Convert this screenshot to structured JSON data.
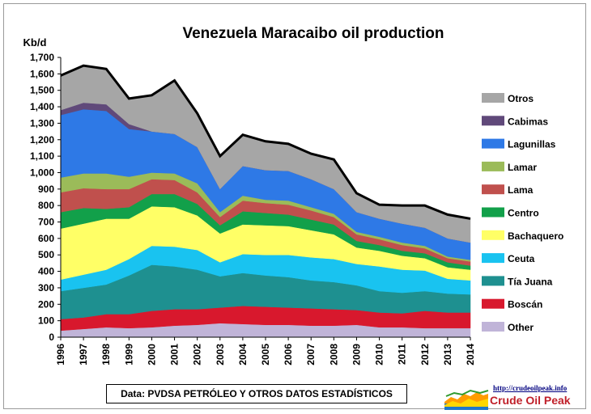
{
  "chart_data": {
    "type": "area",
    "stacked": true,
    "title": "Venezuela Maracaibo oil production",
    "ylabel": "Kb/d",
    "xlabel": "",
    "ylim": [
      0,
      1700
    ],
    "yticks": [
      "0",
      "100",
      "200",
      "300",
      "400",
      "500",
      "600",
      "700",
      "800",
      "900",
      "1,000",
      "1,100",
      "1,200",
      "1,300",
      "1,400",
      "1,500",
      "1,600",
      "1,700"
    ],
    "x": [
      "1996",
      "1997",
      "1998",
      "1999",
      "2000",
      "2001",
      "2002",
      "2003",
      "2004",
      "2005",
      "2006",
      "2007",
      "2008",
      "2009",
      "2010",
      "2011",
      "2012",
      "2013",
      "2014"
    ],
    "legend_position": "right",
    "series": [
      {
        "name": "Other",
        "color": "#c0b4d8",
        "values": [
          40,
          50,
          60,
          55,
          60,
          70,
          75,
          85,
          80,
          75,
          75,
          70,
          70,
          75,
          60,
          60,
          55,
          55,
          55
        ]
      },
      {
        "name": "Boscán",
        "color": "#d8182d",
        "values": [
          70,
          70,
          80,
          85,
          100,
          100,
          95,
          95,
          110,
          110,
          105,
          105,
          100,
          90,
          90,
          85,
          105,
          95,
          95
        ]
      },
      {
        "name": "Tía Juana",
        "color": "#1e9090",
        "values": [
          170,
          180,
          180,
          235,
          280,
          260,
          240,
          190,
          200,
          190,
          185,
          170,
          165,
          150,
          130,
          125,
          120,
          115,
          110
        ]
      },
      {
        "name": "Ceuta",
        "color": "#19c3f0",
        "values": [
          70,
          80,
          90,
          100,
          115,
          120,
          120,
          85,
          115,
          125,
          135,
          140,
          140,
          130,
          150,
          140,
          125,
          90,
          85
        ]
      },
      {
        "name": "Bachaquero",
        "color": "#ffff66",
        "values": [
          310,
          310,
          310,
          245,
          240,
          240,
          210,
          175,
          180,
          180,
          175,
          165,
          150,
          100,
          95,
          85,
          75,
          70,
          65
        ]
      },
      {
        "name": "Centro",
        "color": "#12a04a",
        "values": [
          100,
          95,
          60,
          70,
          75,
          80,
          70,
          50,
          80,
          75,
          70,
          65,
          60,
          40,
          35,
          30,
          30,
          30,
          25
        ]
      },
      {
        "name": "Lama",
        "color": "#c0504d",
        "values": [
          120,
          120,
          120,
          110,
          90,
          85,
          70,
          50,
          65,
          60,
          60,
          55,
          45,
          40,
          35,
          35,
          30,
          25,
          25
        ]
      },
      {
        "name": "Lamar",
        "color": "#9bbb59",
        "values": [
          90,
          90,
          95,
          75,
          40,
          40,
          55,
          30,
          30,
          20,
          25,
          20,
          20,
          15,
          15,
          15,
          15,
          10,
          10
        ]
      },
      {
        "name": "Lagunillas",
        "color": "#2e79e6",
        "values": [
          380,
          390,
          380,
          290,
          250,
          240,
          220,
          140,
          180,
          180,
          180,
          170,
          150,
          120,
          110,
          115,
          110,
          110,
          105
        ]
      },
      {
        "name": "Cabimas",
        "color": "#60497a",
        "values": [
          30,
          40,
          40,
          30,
          0,
          0,
          0,
          0,
          0,
          0,
          0,
          0,
          0,
          0,
          0,
          0,
          0,
          0,
          0
        ]
      },
      {
        "name": "Otros",
        "color": "#a6a6a6",
        "values": [
          210,
          225,
          215,
          155,
          220,
          325,
          205,
          200,
          190,
          175,
          165,
          155,
          180,
          115,
          85,
          110,
          135,
          145,
          145
        ]
      }
    ],
    "legend_order": [
      "Otros",
      "Cabimas",
      "Lagunillas",
      "Lamar",
      "Lama",
      "Centro",
      "Bachaquero",
      "Ceuta",
      "Tía Juana",
      "Boscán",
      "Other"
    ],
    "total_line_color": "#000000",
    "grid": false
  },
  "source_note": "Data: PVDSA PETRÓLEO Y OTROS DATOS ESTADÍSTICOS",
  "logo": {
    "url_text": "http://crudeoilpeak.info",
    "name": "Crude Oil Peak"
  }
}
